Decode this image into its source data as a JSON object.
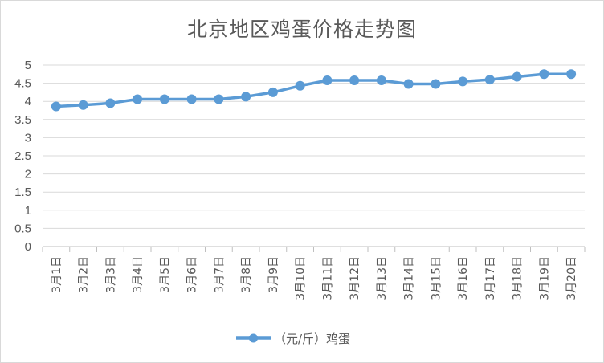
{
  "chart_data": {
    "type": "line",
    "title": "北京地区鸡蛋价格走势图",
    "categories": [
      "3月1日",
      "3月2日",
      "3月3日",
      "3月4日",
      "3月5日",
      "3月6日",
      "3月7日",
      "3月8日",
      "3月9日",
      "3月10日",
      "3月11日",
      "3月12日",
      "3月13日",
      "3月14日",
      "3月15日",
      "3月16日",
      "3月17日",
      "3月18日",
      "3月19日",
      "3月20日"
    ],
    "series": [
      {
        "name": "（元/斤）鸡蛋",
        "color": "#5b9bd5",
        "values": [
          3.86,
          3.9,
          3.95,
          4.06,
          4.06,
          4.06,
          4.06,
          4.13,
          4.25,
          4.43,
          4.58,
          4.58,
          4.58,
          4.48,
          4.48,
          4.55,
          4.6,
          4.68,
          4.75,
          4.75
        ]
      }
    ],
    "y_ticks": [
      "0",
      "0.5",
      "1",
      "1.5",
      "2",
      "2.5",
      "3",
      "3.5",
      "4",
      "4.5",
      "5"
    ],
    "ylim": [
      0,
      5
    ],
    "grid": true,
    "legend_position": "bottom"
  }
}
